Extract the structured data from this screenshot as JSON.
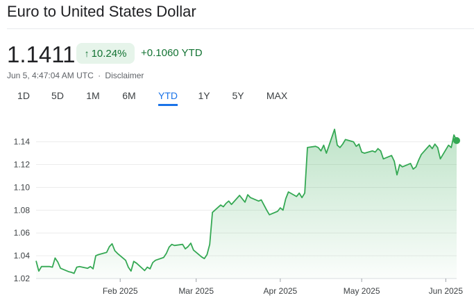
{
  "header": {
    "title": "Euro to United States Dollar"
  },
  "quote": {
    "price": "1.1411",
    "change_percent": "10.24%",
    "change_abs": "+0.1060",
    "change_period": "YTD",
    "timestamp": "Jun 5, 4:47:04 AM UTC",
    "separator": "·",
    "disclaimer": "Disclaimer"
  },
  "icons": {
    "change_arrow": "arrow-up-icon"
  },
  "range_tabs": [
    "1D",
    "5D",
    "1M",
    "6M",
    "YTD",
    "1Y",
    "5Y",
    "MAX"
  ],
  "active_range": "YTD",
  "colors": {
    "positive": "#137333",
    "line": "#34a853",
    "badge_bg": "#e6f4ea",
    "active_tab": "#1a73e8"
  },
  "chart_data": {
    "type": "area",
    "x": [
      "2025-01-01",
      "2025-01-02",
      "2025-01-03",
      "2025-01-06",
      "2025-01-07",
      "2025-01-08",
      "2025-01-09",
      "2025-01-10",
      "2025-01-13",
      "2025-01-14",
      "2025-01-15",
      "2025-01-16",
      "2025-01-17",
      "2025-01-20",
      "2025-01-21",
      "2025-01-22",
      "2025-01-23",
      "2025-01-24",
      "2025-01-27",
      "2025-01-28",
      "2025-01-29",
      "2025-01-30",
      "2025-01-31",
      "2025-02-03",
      "2025-02-04",
      "2025-02-05",
      "2025-02-06",
      "2025-02-07",
      "2025-02-10",
      "2025-02-11",
      "2025-02-12",
      "2025-02-13",
      "2025-02-14",
      "2025-02-17",
      "2025-02-18",
      "2025-02-19",
      "2025-02-20",
      "2025-02-21",
      "2025-02-24",
      "2025-02-25",
      "2025-02-26",
      "2025-02-27",
      "2025-02-28",
      "2025-03-03",
      "2025-03-04",
      "2025-03-05",
      "2025-03-06",
      "2025-03-07",
      "2025-03-10",
      "2025-03-11",
      "2025-03-12",
      "2025-03-13",
      "2025-03-14",
      "2025-03-17",
      "2025-03-18",
      "2025-03-19",
      "2025-03-20",
      "2025-03-21",
      "2025-03-24",
      "2025-03-25",
      "2025-03-26",
      "2025-03-27",
      "2025-03-28",
      "2025-03-31",
      "2025-04-01",
      "2025-04-02",
      "2025-04-03",
      "2025-04-04",
      "2025-04-07",
      "2025-04-08",
      "2025-04-09",
      "2025-04-10",
      "2025-04-11",
      "2025-04-14",
      "2025-04-15",
      "2025-04-16",
      "2025-04-17",
      "2025-04-18",
      "2025-04-21",
      "2025-04-22",
      "2025-04-23",
      "2025-04-24",
      "2025-04-25",
      "2025-04-28",
      "2025-04-29",
      "2025-04-30",
      "2025-05-01",
      "2025-05-02",
      "2025-05-05",
      "2025-05-06",
      "2025-05-07",
      "2025-05-08",
      "2025-05-09",
      "2025-05-12",
      "2025-05-13",
      "2025-05-14",
      "2025-05-15",
      "2025-05-16",
      "2025-05-19",
      "2025-05-20",
      "2025-05-21",
      "2025-05-22",
      "2025-05-23",
      "2025-05-26",
      "2025-05-27",
      "2025-05-28",
      "2025-05-29",
      "2025-05-30",
      "2025-06-02",
      "2025-06-03",
      "2025-06-04",
      "2025-06-05"
    ],
    "values": [
      1.0355,
      1.0265,
      1.0305,
      1.0305,
      1.03,
      1.038,
      1.0345,
      1.029,
      1.026,
      1.0255,
      1.0245,
      1.03,
      1.0305,
      1.029,
      1.0305,
      1.0285,
      1.04,
      1.041,
      1.043,
      1.048,
      1.0505,
      1.0445,
      1.042,
      1.036,
      1.03,
      1.0265,
      1.035,
      1.0335,
      1.027,
      1.03,
      1.0285,
      1.034,
      1.036,
      1.0385,
      1.042,
      1.0475,
      1.05,
      1.049,
      1.05,
      1.046,
      1.048,
      1.051,
      1.045,
      1.039,
      1.0375,
      1.041,
      1.05,
      1.078,
      1.0845,
      1.083,
      1.086,
      1.088,
      1.085,
      1.093,
      1.09,
      1.087,
      1.0935,
      1.091,
      1.088,
      1.089,
      1.0845,
      1.08,
      1.076,
      1.079,
      1.082,
      1.08,
      1.09,
      1.096,
      1.092,
      1.095,
      1.091,
      1.095,
      1.135,
      1.136,
      1.135,
      1.132,
      1.137,
      1.13,
      1.151,
      1.137,
      1.135,
      1.138,
      1.142,
      1.14,
      1.136,
      1.138,
      1.131,
      1.13,
      1.132,
      1.131,
      1.134,
      1.132,
      1.125,
      1.128,
      1.123,
      1.111,
      1.12,
      1.118,
      1.121,
      1.116,
      1.118,
      1.124,
      1.129,
      1.137,
      1.134,
      1.138,
      1.135,
      1.125,
      1.137,
      1.135,
      1.146,
      1.1411
    ],
    "y_ticks": [
      1.02,
      1.04,
      1.06,
      1.08,
      1.1,
      1.12,
      1.14
    ],
    "x_ticks": [
      {
        "date": "2025-02-01",
        "label": "Feb 2025"
      },
      {
        "date": "2025-03-01",
        "label": "Mar 2025"
      },
      {
        "date": "2025-04-01",
        "label": "Apr 2025"
      },
      {
        "date": "2025-05-01",
        "label": "May 2025"
      },
      {
        "date": "2025-06-01",
        "label": "Jun 2025"
      }
    ],
    "ylim": [
      1.02,
      1.155
    ],
    "xlim": [
      "2025-01-01",
      "2025-06-05"
    ],
    "grid": true,
    "last_value": 1.1411
  }
}
